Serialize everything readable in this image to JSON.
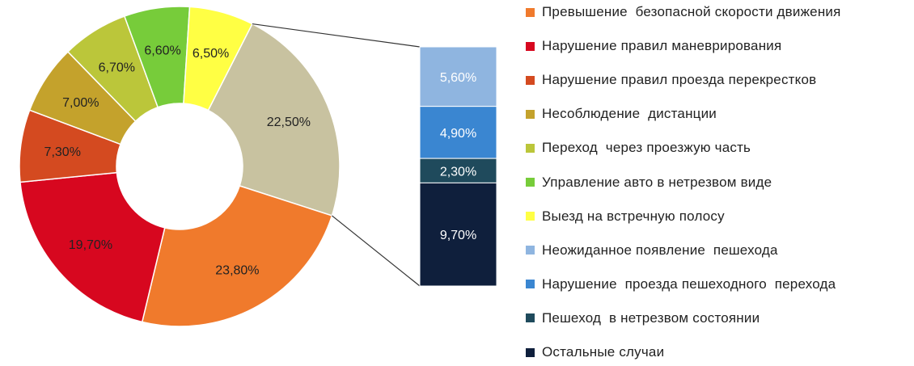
{
  "chart_data": {
    "type": "pie",
    "subtype": "doughnut-with-stacked-breakdown-bar",
    "title": "",
    "slices": [
      {
        "label": "Превышение  безопасной скорости движения",
        "value": 23.8,
        "value_label": "23,80%",
        "color": "#f07a2c"
      },
      {
        "label": "Нарушение правил маневрирования",
        "value": 19.7,
        "value_label": "19,70%",
        "color": "#d7071f"
      },
      {
        "label": "Нарушение правил проезда перекрестков",
        "value": 7.3,
        "value_label": "7,30%",
        "color": "#d44a20"
      },
      {
        "label": "Несоблюдение  дистанции",
        "value": 7.0,
        "value_label": "7,00%",
        "color": "#c4a22c"
      },
      {
        "label": "Переход  через проезжую часть",
        "value": 6.7,
        "value_label": "6,70%",
        "color": "#bbc63a"
      },
      {
        "label": "Управление авто в нетрезвом виде",
        "value": 6.6,
        "value_label": "6,60%",
        "color": "#77cc3a"
      },
      {
        "label": "Выезд на встречную полосу",
        "value": 6.5,
        "value_label": "6,50%",
        "color": "#ffff44"
      },
      {
        "label": "",
        "value": 22.5,
        "value_label": "22,50%",
        "color": "#c8c2a0",
        "is_breakdown_group": true
      }
    ],
    "breakdown": [
      {
        "label": "Неожиданное появление  пешехода",
        "value": 5.6,
        "value_label": "5,60%",
        "color": "#8fb5e0"
      },
      {
        "label": "Нарушение  проезда пешеходного  перехода",
        "value": 4.9,
        "value_label": "4,90%",
        "color": "#3a86d1"
      },
      {
        "label": "Пешеход  в нетрезвом состоянии",
        "value": 2.3,
        "value_label": "2,30%",
        "color": "#1f4a5c"
      },
      {
        "label": "Остальные случаи",
        "value": 9.7,
        "value_label": "9,70%",
        "color": "#0f1f3c"
      }
    ],
    "legend_position": "right"
  }
}
